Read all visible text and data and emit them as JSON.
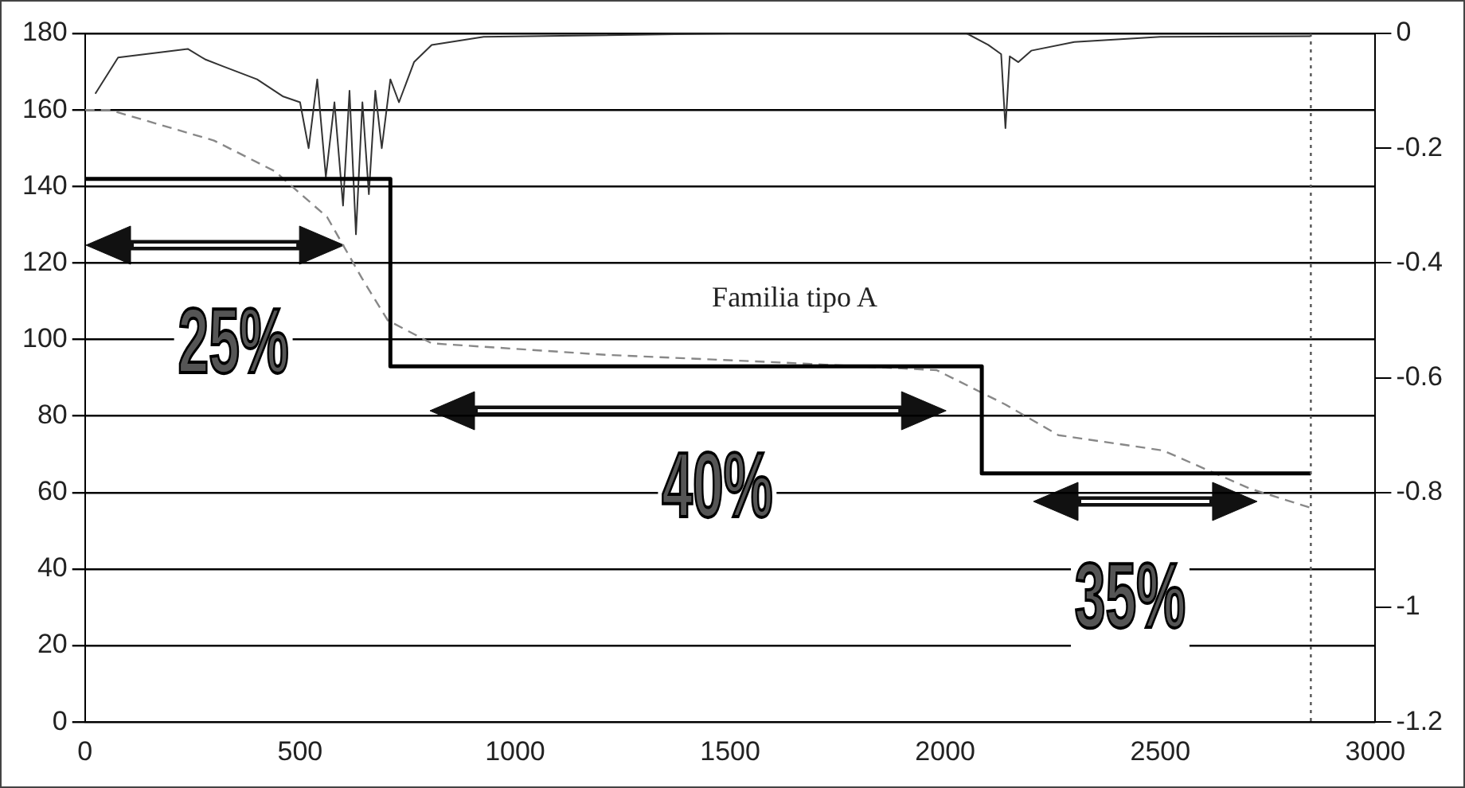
{
  "chart_data": {
    "type": "line",
    "xlim": [
      0,
      3000
    ],
    "xticks": [
      0,
      500,
      1000,
      1500,
      2000,
      2500,
      3000
    ],
    "ylim": [
      0,
      180
    ],
    "yticks": [
      0,
      20,
      40,
      60,
      80,
      100,
      120,
      140,
      160,
      180
    ],
    "y2lim": [
      -1.2,
      0
    ],
    "y2ticks": [
      0,
      -0.2,
      -0.4,
      -0.6,
      -0.8,
      -1,
      -1.2
    ],
    "grid": "y",
    "marker": "none",
    "series": [
      {
        "type": "step",
        "color": "#000000",
        "x": [
          0,
          710,
          2085,
          2850
        ],
        "values": [
          142,
          93,
          65,
          65
        ]
      },
      {
        "color": "#888888",
        "line_style": "dashed",
        "x": [
          0,
          57,
          300,
          441,
          563,
          644,
          704,
          806,
          1210,
          1615,
          1980,
          2140,
          2263,
          2506,
          2709,
          2850
        ],
        "values": [
          160,
          160,
          152,
          144,
          132,
          116,
          105,
          99,
          96,
          94,
          92,
          83,
          75,
          71,
          61,
          56
        ]
      },
      {
        "color": "#333333",
        "axis": "y2",
        "x": [
          24,
          77,
          239,
          279,
          320,
          400,
          461,
          500,
          520,
          540,
          560,
          580,
          600,
          615,
          630,
          645,
          660,
          675,
          690,
          710,
          730,
          765,
          806,
          927,
          1500,
          2050,
          2100,
          2130,
          2140,
          2150,
          2170,
          2200,
          2300,
          2500,
          2850
        ],
        "values": [
          -0.105,
          -0.042,
          -0.027,
          -0.045,
          -0.057,
          -0.08,
          -0.11,
          -0.12,
          -0.2,
          -0.08,
          -0.25,
          -0.12,
          -0.3,
          -0.1,
          -0.35,
          -0.12,
          -0.28,
          -0.1,
          -0.2,
          -0.08,
          -0.12,
          -0.05,
          -0.02,
          -0.006,
          0,
          0,
          -0.02,
          -0.036,
          -0.165,
          -0.04,
          -0.05,
          -0.03,
          -0.015,
          -0.006,
          -0.005
        ]
      }
    ],
    "ref_lines": [
      {
        "axis": "x",
        "value": 2850,
        "line_style": "dotted",
        "color": "#555555"
      }
    ],
    "annotations": [
      "Familia tipo A",
      "25%",
      "40%",
      "35%"
    ]
  }
}
